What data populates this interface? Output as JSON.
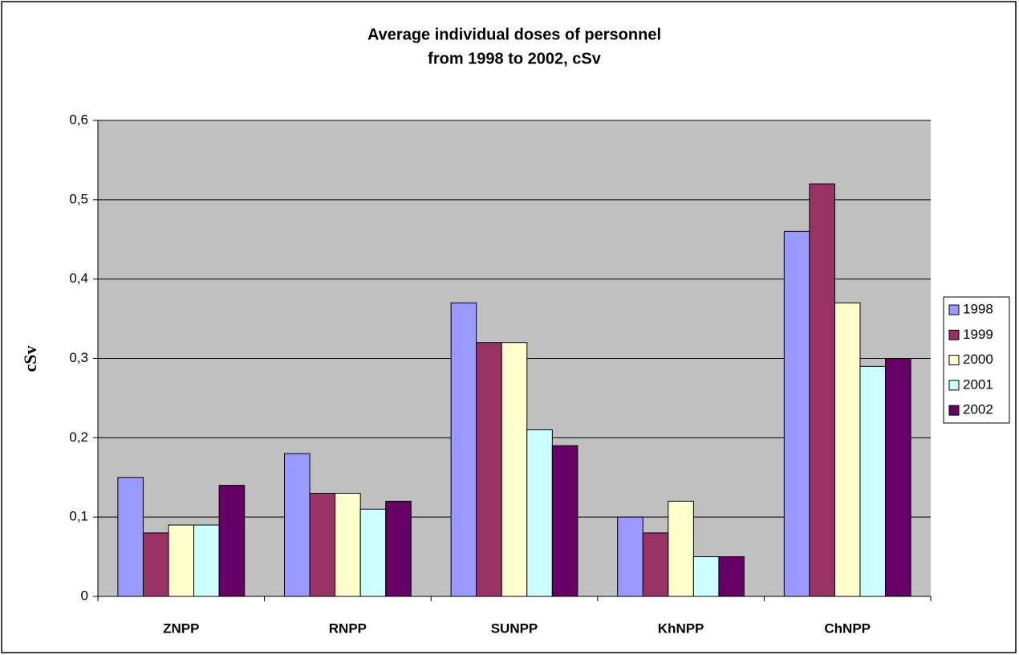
{
  "chart_data": {
    "type": "bar",
    "title": [
      "Average individual doses of personnel",
      "from 1998 to 2002, cSv"
    ],
    "y_label": "cSv",
    "categories": [
      "ZNPP",
      "RNPP",
      "SUNPP",
      "KhNPP",
      "ChNPP"
    ],
    "series": [
      {
        "name": "1998",
        "color": "#9999ff",
        "values": [
          0.15,
          0.18,
          0.37,
          0.1,
          0.46
        ]
      },
      {
        "name": "1999",
        "color": "#993366",
        "values": [
          0.08,
          0.13,
          0.32,
          0.08,
          0.52
        ]
      },
      {
        "name": "2000",
        "color": "#ffffcc",
        "values": [
          0.09,
          0.13,
          0.32,
          0.12,
          0.37
        ]
      },
      {
        "name": "2001",
        "color": "#ccffff",
        "values": [
          0.09,
          0.11,
          0.21,
          0.05,
          0.29
        ]
      },
      {
        "name": "2002",
        "color": "#660066",
        "values": [
          0.14,
          0.12,
          0.19,
          0.05,
          0.3
        ]
      }
    ],
    "ylim": [
      0,
      0.6
    ],
    "yticks": [
      0,
      {
        "value": 0.1,
        "label": "0,1"
      },
      {
        "value": 0.2,
        "label": "0,2"
      },
      {
        "value": 0.3,
        "label": "0,3"
      },
      {
        "value": 0.4,
        "label": "0,4"
      },
      {
        "value": 0.5,
        "label": "0,5"
      },
      {
        "value": 0.6,
        "label": "0,6"
      }
    ],
    "grid": true,
    "plot_background": "#c0c0c0",
    "legend": "right"
  }
}
